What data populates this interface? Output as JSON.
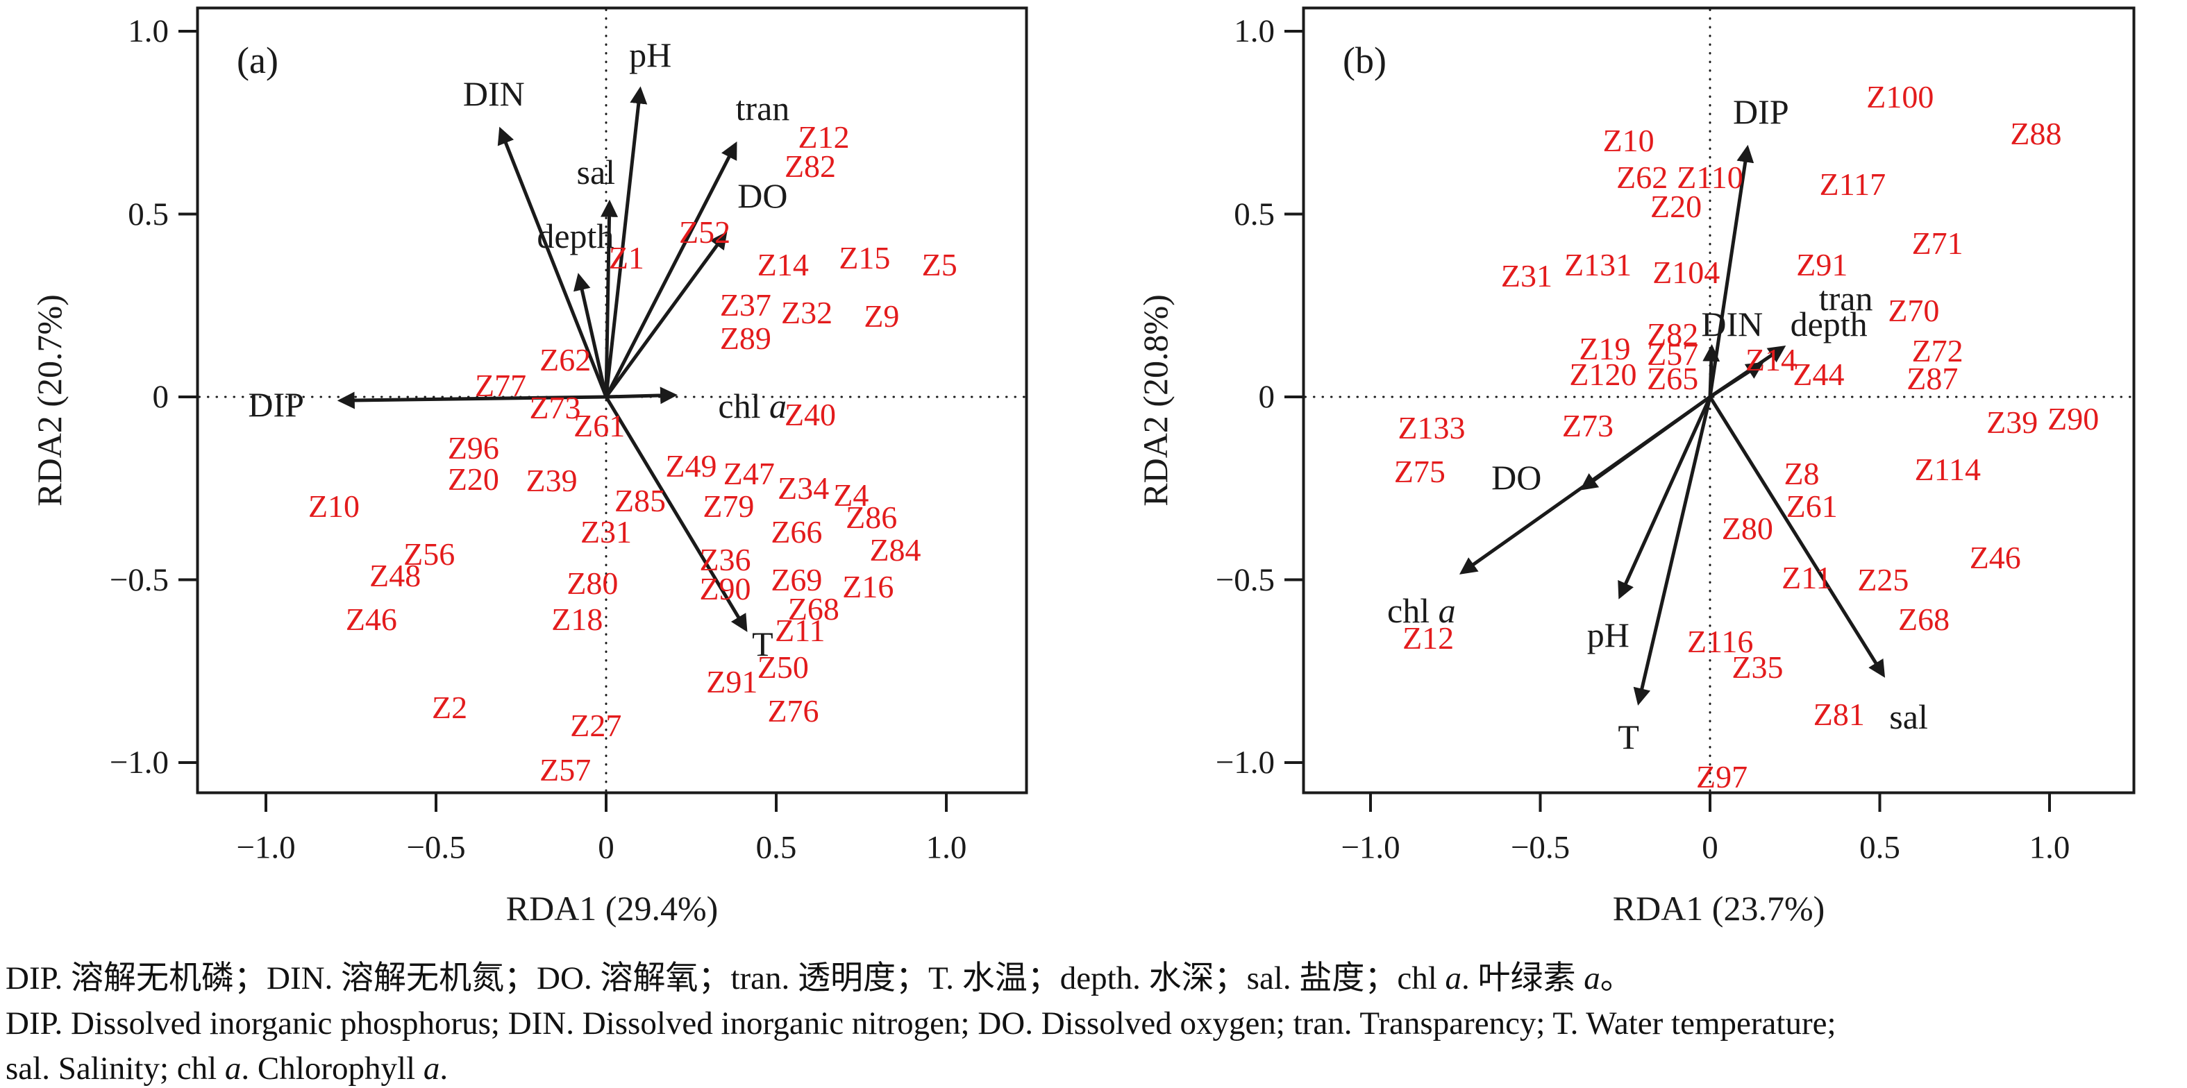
{
  "figure": {
    "background": "#ffffff",
    "site_color": "#e31b1c",
    "line_color": "#1a1a1a",
    "caption": {
      "line1": "DIP. 溶解无机磷；DIN. 溶解无机氮；DO. 溶解氧；tran. 透明度；T. 水温；depth. 水深；sal. 盐度；chl a. 叶绿素 a。",
      "line2": "DIP. Dissolved inorganic phosphorus; DIN. Dissolved inorganic nitrogen; DO. Dissolved oxygen; tran. Transparency; T. Water temperature;",
      "line3": "sal. Salinity; chl a. Chlorophyll a."
    }
  },
  "chart_data": [
    {
      "type": "scatter",
      "panel_label": "(a)",
      "xlabel": "RDA1 (29.4%)",
      "ylabel": "RDA2 (20.7%)",
      "xlim": [
        -1.22,
        1.25
      ],
      "ylim": [
        -1.09,
        1.07
      ],
      "xticks": [
        -1.0,
        -0.5,
        0,
        0.5,
        1.0
      ],
      "yticks": [
        1.0,
        0.5,
        0,
        -0.5,
        -1.0
      ],
      "xtick_labels": [
        "−1.0",
        "−0.5",
        "0",
        "0.5",
        "1.0"
      ],
      "ytick_labels": [
        "1.0",
        "0.5",
        "0",
        "−0.5",
        "−1.0"
      ],
      "grid": "dotted zero lines",
      "legend": "none",
      "env_arrows": [
        {
          "name": "DIP",
          "tip": [
            -0.78,
            -0.01
          ],
          "label_pos": [
            -0.97,
            -0.02
          ]
        },
        {
          "name": "DIN",
          "tip": [
            -0.31,
            0.73
          ],
          "label_pos": [
            -0.33,
            0.83
          ]
        },
        {
          "name": "pH",
          "tip": [
            0.1,
            0.84
          ],
          "label_pos": [
            0.13,
            0.935
          ]
        },
        {
          "name": "sal",
          "tip": [
            0.01,
            0.53
          ],
          "label_pos": [
            -0.03,
            0.615
          ]
        },
        {
          "name": "depth",
          "tip": [
            -0.08,
            0.33
          ],
          "label_pos": [
            -0.09,
            0.44
          ]
        },
        {
          "name": "tran",
          "tip": [
            0.38,
            0.69
          ],
          "label_pos": [
            0.46,
            0.79
          ]
        },
        {
          "name": "DO",
          "tip": [
            0.35,
            0.445
          ],
          "label_pos": [
            0.46,
            0.55
          ]
        },
        {
          "name": "chl a",
          "tip": [
            0.2,
            0.005
          ],
          "label_pos": [
            0.43,
            -0.025
          ]
        },
        {
          "name": "T",
          "tip": [
            0.41,
            -0.635
          ],
          "label_pos": [
            0.46,
            -0.675
          ]
        }
      ],
      "sites": [
        {
          "id": "Z1",
          "pos": [
            0.06,
            0.38
          ]
        },
        {
          "id": "Z52",
          "pos": [
            0.29,
            0.45
          ]
        },
        {
          "id": "Z12",
          "pos": [
            0.64,
            0.71
          ]
        },
        {
          "id": "Z82",
          "pos": [
            0.6,
            0.63
          ]
        },
        {
          "id": "Z14",
          "pos": [
            0.52,
            0.36
          ]
        },
        {
          "id": "Z15",
          "pos": [
            0.76,
            0.38
          ]
        },
        {
          "id": "Z5",
          "pos": [
            0.98,
            0.36
          ]
        },
        {
          "id": "Z37",
          "pos": [
            0.41,
            0.25
          ]
        },
        {
          "id": "Z32",
          "pos": [
            0.59,
            0.23
          ]
        },
        {
          "id": "Z9",
          "pos": [
            0.81,
            0.22
          ]
        },
        {
          "id": "Z89",
          "pos": [
            0.41,
            0.16
          ]
        },
        {
          "id": "Z62",
          "pos": [
            -0.12,
            0.1
          ]
        },
        {
          "id": "Z77",
          "pos": [
            -0.31,
            0.03
          ]
        },
        {
          "id": "Z73",
          "pos": [
            -0.15,
            -0.03
          ]
        },
        {
          "id": "Z61",
          "pos": [
            -0.02,
            -0.08
          ]
        },
        {
          "id": "Z40",
          "pos": [
            0.6,
            -0.05
          ]
        },
        {
          "id": "Z96",
          "pos": [
            -0.39,
            -0.14
          ]
        },
        {
          "id": "Z20",
          "pos": [
            -0.39,
            -0.225
          ]
        },
        {
          "id": "Z39",
          "pos": [
            -0.16,
            -0.23
          ]
        },
        {
          "id": "Z85",
          "pos": [
            0.1,
            -0.285
          ]
        },
        {
          "id": "Z49",
          "pos": [
            0.25,
            -0.19
          ]
        },
        {
          "id": "Z47",
          "pos": [
            0.42,
            -0.21
          ]
        },
        {
          "id": "Z79",
          "pos": [
            0.36,
            -0.3
          ]
        },
        {
          "id": "Z34",
          "pos": [
            0.58,
            -0.25
          ]
        },
        {
          "id": "Z4",
          "pos": [
            0.72,
            -0.27
          ]
        },
        {
          "id": "Z86",
          "pos": [
            0.78,
            -0.33
          ]
        },
        {
          "id": "Z66",
          "pos": [
            0.56,
            -0.37
          ]
        },
        {
          "id": "Z84",
          "pos": [
            0.85,
            -0.42
          ]
        },
        {
          "id": "Z36",
          "pos": [
            0.35,
            -0.445
          ]
        },
        {
          "id": "Z90",
          "pos": [
            0.35,
            -0.525
          ]
        },
        {
          "id": "Z69",
          "pos": [
            0.56,
            -0.5
          ]
        },
        {
          "id": "Z68",
          "pos": [
            0.61,
            -0.58
          ]
        },
        {
          "id": "Z16",
          "pos": [
            0.77,
            -0.52
          ]
        },
        {
          "id": "Z11",
          "pos": [
            0.57,
            -0.64
          ]
        },
        {
          "id": "Z50",
          "pos": [
            0.52,
            -0.74
          ]
        },
        {
          "id": "Z91",
          "pos": [
            0.37,
            -0.78
          ]
        },
        {
          "id": "Z76",
          "pos": [
            0.55,
            -0.86
          ]
        },
        {
          "id": "Z10",
          "pos": [
            -0.8,
            -0.3
          ]
        },
        {
          "id": "Z56",
          "pos": [
            -0.52,
            -0.43
          ]
        },
        {
          "id": "Z48",
          "pos": [
            -0.62,
            -0.49
          ]
        },
        {
          "id": "Z46",
          "pos": [
            -0.69,
            -0.61
          ]
        },
        {
          "id": "Z2",
          "pos": [
            -0.46,
            -0.85
          ]
        },
        {
          "id": "Z31",
          "pos": [
            0.0,
            -0.37
          ]
        },
        {
          "id": "Z80",
          "pos": [
            -0.04,
            -0.51
          ]
        },
        {
          "id": "Z18",
          "pos": [
            -0.085,
            -0.61
          ]
        },
        {
          "id": "Z27",
          "pos": [
            -0.03,
            -0.9
          ]
        },
        {
          "id": "Z57",
          "pos": [
            -0.12,
            -1.02
          ]
        }
      ]
    },
    {
      "type": "scatter",
      "panel_label": "(b)",
      "xlabel": "RDA1 (23.7%)",
      "ylabel": "RDA2 (20.8%)",
      "xlim": [
        -1.2,
        1.25
      ],
      "ylim": [
        -1.09,
        1.07
      ],
      "xticks": [
        -1.0,
        -0.5,
        0,
        0.5,
        1.0
      ],
      "yticks": [
        1.0,
        0.5,
        0,
        -0.5,
        -1.0
      ],
      "xtick_labels": [
        "−1.0",
        "−0.5",
        "0",
        "0.5",
        "1.0"
      ],
      "ytick_labels": [
        "1.0",
        "0.5",
        "0",
        "−0.5",
        "−1.0"
      ],
      "grid": "dotted zero lines",
      "legend": "none",
      "env_arrows": [
        {
          "name": "DIP",
          "tip": [
            0.11,
            0.68
          ],
          "label_pos": [
            0.15,
            0.78
          ]
        },
        {
          "name": "DIN",
          "tip": [
            0.005,
            0.135
          ],
          "label_pos": [
            0.065,
            0.2
          ]
        },
        {
          "name": "tran",
          "tip": [
            0.215,
            0.135
          ],
          "label_pos": [
            0.4,
            0.27
          ]
        },
        {
          "name": "depth",
          "tip": [
            0.15,
            0.09
          ],
          "label_pos": [
            0.35,
            0.2
          ]
        },
        {
          "name": "DO",
          "tip": [
            -0.375,
            -0.25
          ],
          "label_pos": [
            -0.57,
            -0.22
          ]
        },
        {
          "name": "chl a",
          "tip": [
            -0.73,
            -0.48
          ],
          "label_pos": [
            -0.85,
            -0.585
          ]
        },
        {
          "name": "pH",
          "tip": [
            -0.265,
            -0.545
          ],
          "label_pos": [
            -0.3,
            -0.65
          ]
        },
        {
          "name": "T",
          "tip": [
            -0.21,
            -0.835
          ],
          "label_pos": [
            -0.24,
            -0.93
          ]
        },
        {
          "name": "sal",
          "tip": [
            0.51,
            -0.76
          ],
          "label_pos": [
            0.585,
            -0.875
          ]
        }
      ],
      "sites": [
        {
          "id": "Z10",
          "pos": [
            -0.24,
            0.7
          ]
        },
        {
          "id": "Z62",
          "pos": [
            -0.2,
            0.6
          ]
        },
        {
          "id": "Z110",
          "pos": [
            0.0,
            0.6
          ]
        },
        {
          "id": "Z20",
          "pos": [
            -0.1,
            0.52
          ]
        },
        {
          "id": "Z100",
          "pos": [
            0.56,
            0.82
          ]
        },
        {
          "id": "Z88",
          "pos": [
            0.96,
            0.72
          ]
        },
        {
          "id": "Z117",
          "pos": [
            0.42,
            0.58
          ]
        },
        {
          "id": "Z31",
          "pos": [
            -0.54,
            0.33
          ]
        },
        {
          "id": "Z131",
          "pos": [
            -0.33,
            0.36
          ]
        },
        {
          "id": "Z104",
          "pos": [
            -0.07,
            0.34
          ]
        },
        {
          "id": "Z91",
          "pos": [
            0.33,
            0.36
          ]
        },
        {
          "id": "Z71",
          "pos": [
            0.67,
            0.42
          ]
        },
        {
          "id": "Z70",
          "pos": [
            0.6,
            0.235
          ]
        },
        {
          "id": "Z72",
          "pos": [
            0.67,
            0.125
          ]
        },
        {
          "id": "Z87",
          "pos": [
            0.655,
            0.05
          ]
        },
        {
          "id": "Z19",
          "pos": [
            -0.31,
            0.13
          ]
        },
        {
          "id": "Z82",
          "pos": [
            -0.11,
            0.17
          ]
        },
        {
          "id": "Z57",
          "pos": [
            -0.11,
            0.115
          ]
        },
        {
          "id": "Z120",
          "pos": [
            -0.315,
            0.06
          ]
        },
        {
          "id": "Z65",
          "pos": [
            -0.11,
            0.05
          ]
        },
        {
          "id": "Z14",
          "pos": [
            0.18,
            0.1
          ]
        },
        {
          "id": "Z44",
          "pos": [
            0.32,
            0.06
          ]
        },
        {
          "id": "Z39",
          "pos": [
            0.89,
            -0.07
          ]
        },
        {
          "id": "Z90",
          "pos": [
            1.07,
            -0.06
          ]
        },
        {
          "id": "Z133",
          "pos": [
            -0.82,
            -0.085
          ]
        },
        {
          "id": "Z75",
          "pos": [
            -0.855,
            -0.205
          ]
        },
        {
          "id": "Z73",
          "pos": [
            -0.36,
            -0.08
          ]
        },
        {
          "id": "Z8",
          "pos": [
            0.27,
            -0.21
          ]
        },
        {
          "id": "Z61",
          "pos": [
            0.3,
            -0.3
          ]
        },
        {
          "id": "Z80",
          "pos": [
            0.11,
            -0.36
          ]
        },
        {
          "id": "Z114",
          "pos": [
            0.7,
            -0.2
          ]
        },
        {
          "id": "Z11",
          "pos": [
            0.285,
            -0.495
          ]
        },
        {
          "id": "Z25",
          "pos": [
            0.51,
            -0.5
          ]
        },
        {
          "id": "Z46",
          "pos": [
            0.84,
            -0.44
          ]
        },
        {
          "id": "Z68",
          "pos": [
            0.63,
            -0.61
          ]
        },
        {
          "id": "Z12",
          "pos": [
            -0.83,
            -0.66
          ]
        },
        {
          "id": "Z116",
          "pos": [
            0.03,
            -0.67
          ]
        },
        {
          "id": "Z35",
          "pos": [
            0.14,
            -0.74
          ]
        },
        {
          "id": "Z81",
          "pos": [
            0.38,
            -0.87
          ]
        },
        {
          "id": "Z97",
          "pos": [
            0.035,
            -1.04
          ]
        }
      ]
    }
  ]
}
